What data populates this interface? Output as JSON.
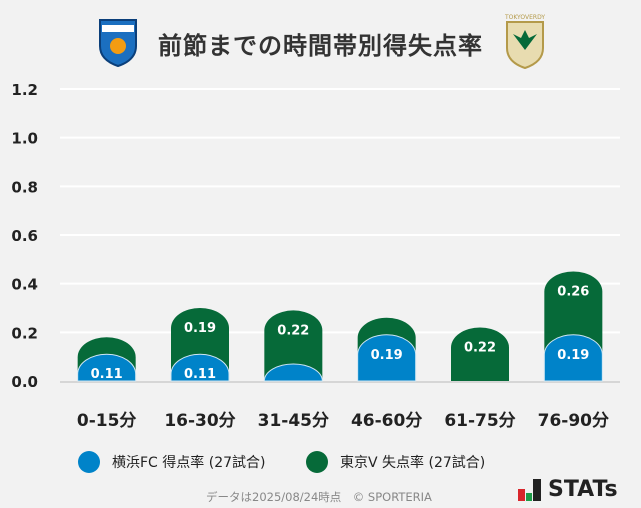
{
  "header": {
    "title": "前節までの時間帯別得失点率",
    "home_logo": "YOKOHAMA",
    "away_logo": "TOKYOVERDY"
  },
  "chart_data": {
    "type": "bar",
    "stacked": true,
    "categories": [
      "0-15分",
      "16-30分",
      "31-45分",
      "46-60分",
      "61-75分",
      "76-90分"
    ],
    "series": [
      {
        "name": "横浜FC 得点率 (27試合)",
        "color": "#0083c9",
        "values": [
          0.11,
          0.11,
          0.07,
          0.19,
          0,
          0.19
        ],
        "labels": [
          "0.11",
          "0.11",
          "",
          "0.19",
          "",
          "0.19"
        ]
      },
      {
        "name": "東京V 失点率 (27試合)",
        "color": "#066a39",
        "values": [
          0.07,
          0.19,
          0.22,
          0.07,
          0.22,
          0.26
        ],
        "labels": [
          "",
          "0.19",
          "0.22",
          "",
          "0.22",
          "0.26"
        ]
      }
    ],
    "ylim": [
      0,
      1.2
    ],
    "yticks": [
      "0.0",
      "0.2",
      "0.4",
      "0.6",
      "0.8",
      "1.0",
      "1.2"
    ],
    "grid": true,
    "legend": "bottom"
  },
  "footer": {
    "note": "データは2025/08/24時点　© SPORTERIA",
    "brand": "STATs"
  }
}
